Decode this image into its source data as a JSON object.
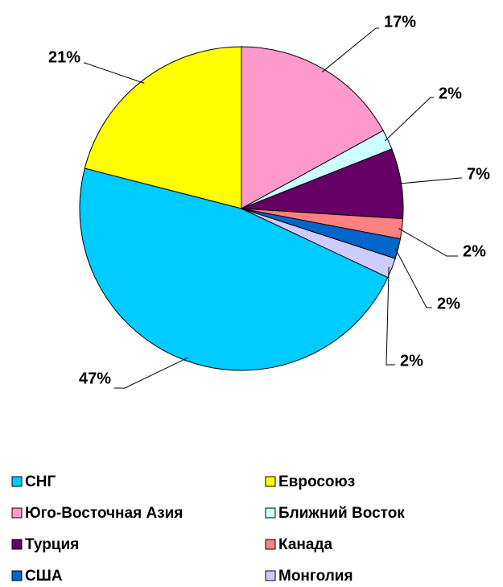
{
  "chart_data": {
    "type": "pie",
    "categories": [
      "СНГ",
      "Евросоюз",
      "Юго-Восточная Азия",
      "Ближний Восток",
      "Турция",
      "Канада",
      "США",
      "Монголия"
    ],
    "values": [
      47,
      21,
      17,
      2,
      7,
      2,
      2,
      2
    ],
    "value_labels": [
      "47%",
      "21%",
      "17%",
      "2%",
      "7%",
      "2%",
      "2%",
      "2%"
    ],
    "colors": [
      "#00ccff",
      "#ffff00",
      "#ff99cc",
      "#ccffff",
      "#660066",
      "#ff8080",
      "#0066cc",
      "#ccccff"
    ],
    "legend": "bottom"
  }
}
